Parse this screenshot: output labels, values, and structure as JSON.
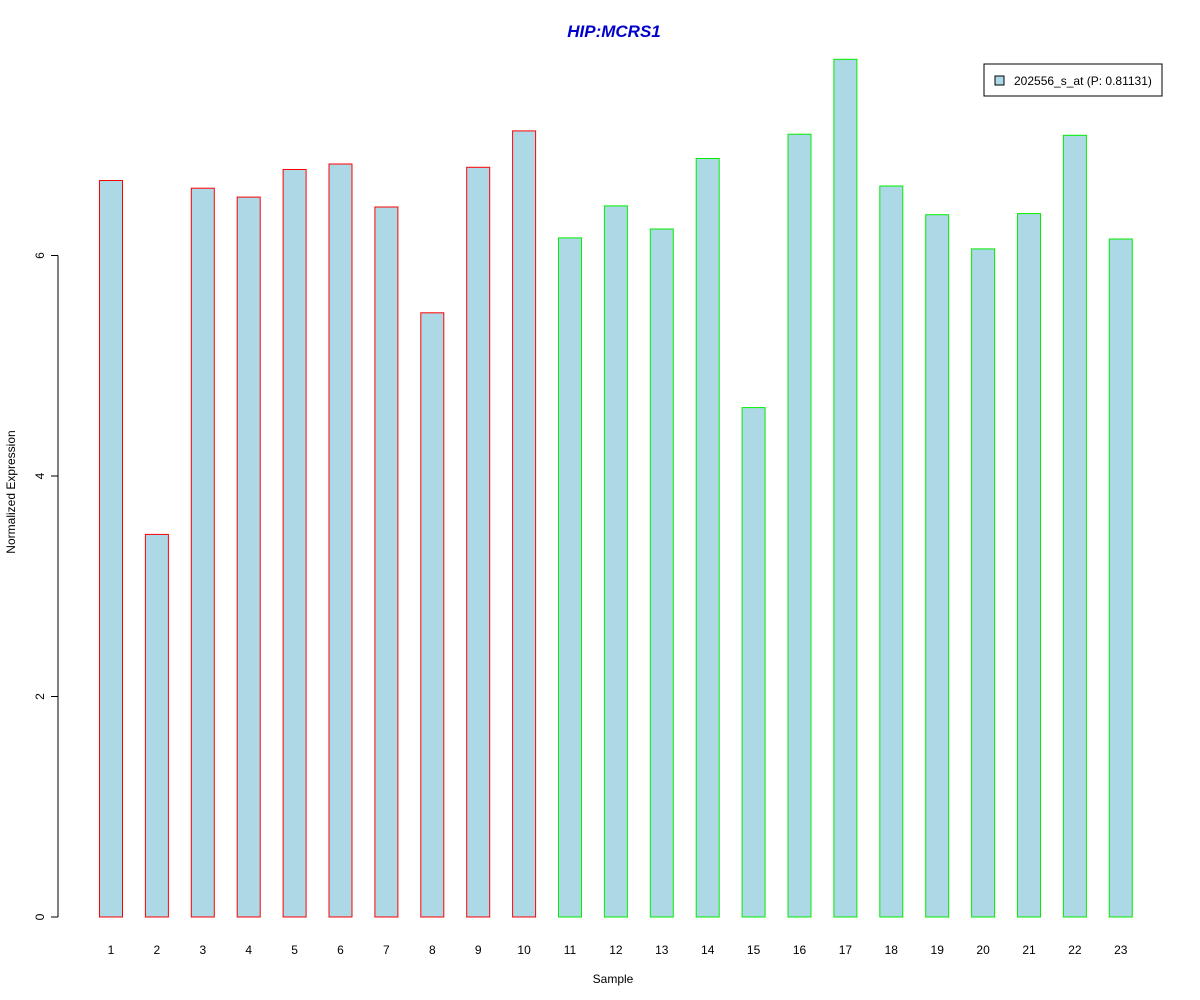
{
  "colors": {
    "title": "#0000cc",
    "bar_fill": "#add8e6",
    "group1_border": "#ff0000",
    "group2_border": "#00ee00",
    "axis": "#000000"
  },
  "chart_data": {
    "type": "bar",
    "title": "HIP:MCRS1",
    "xlabel": "Sample",
    "ylabel": "Normalized Expression",
    "ylim": [
      0,
      7.8
    ],
    "yticks": [
      "0",
      "2",
      "4",
      "6"
    ],
    "grid": false,
    "legend_position": "top-right",
    "categories": [
      "1",
      "2",
      "3",
      "4",
      "5",
      "6",
      "7",
      "8",
      "9",
      "10",
      "11",
      "12",
      "13",
      "14",
      "15",
      "16",
      "17",
      "18",
      "19",
      "20",
      "21",
      "22",
      "23"
    ],
    "series": [
      {
        "name": "202556_s_at (P: 0.81131)",
        "values": [
          6.68,
          3.47,
          6.61,
          6.53,
          6.78,
          6.83,
          6.44,
          5.48,
          6.8,
          7.13,
          6.16,
          6.45,
          6.24,
          6.88,
          4.62,
          7.1,
          7.78,
          6.63,
          6.37,
          6.06,
          6.38,
          7.09,
          6.15
        ],
        "border_groups": [
          "g1",
          "g1",
          "g1",
          "g1",
          "g1",
          "g1",
          "g1",
          "g1",
          "g1",
          "g1",
          "g2",
          "g2",
          "g2",
          "g2",
          "g2",
          "g2",
          "g2",
          "g2",
          "g2",
          "g2",
          "g2",
          "g2",
          "g2"
        ]
      }
    ]
  }
}
